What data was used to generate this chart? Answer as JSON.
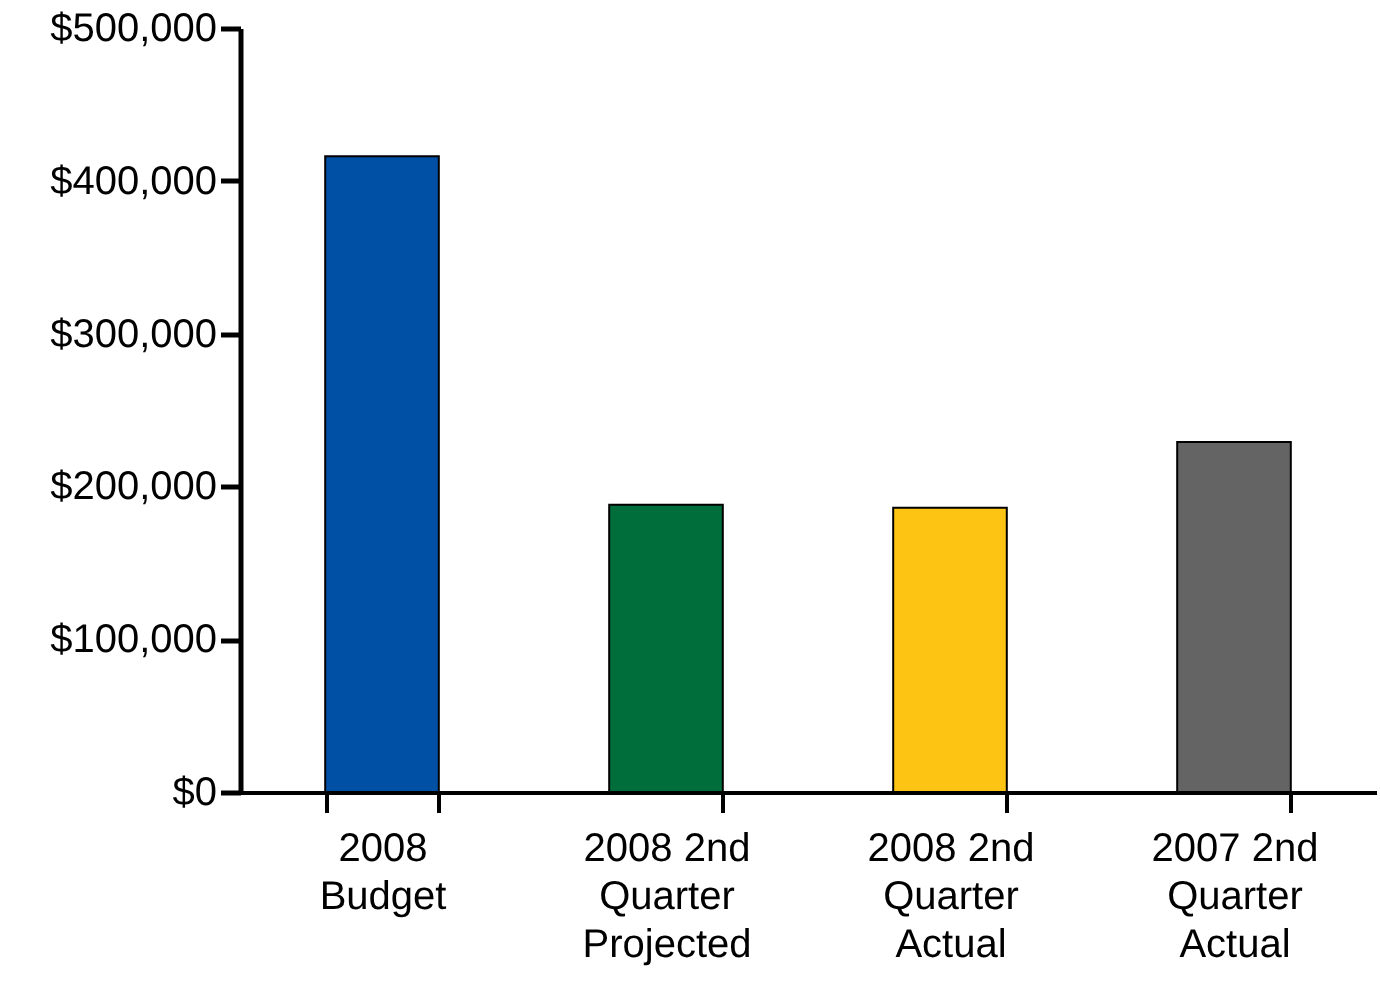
{
  "chart_data": {
    "type": "bar",
    "categories": [
      "2008\nBudget",
      "2008 2nd\nQuarter\nProjected",
      "2008 2nd\nQuarter\nActual",
      "2007 2nd\nQuarter\nActual"
    ],
    "values": [
      416000,
      188000,
      186000,
      229000
    ],
    "colors": [
      "#0050a5",
      "#006e3b",
      "#fdc414",
      "#646464"
    ],
    "ylim": [
      0,
      500000
    ],
    "yticks": [
      {
        "value": 0,
        "label": "$0"
      },
      {
        "value": 100000,
        "label": "$100,000"
      },
      {
        "value": 200000,
        "label": "$200,000"
      },
      {
        "value": 300000,
        "label": "$300,000"
      },
      {
        "value": 400000,
        "label": "$400,000"
      },
      {
        "value": 500000,
        "label": "$500,000"
      }
    ],
    "grid": false
  }
}
